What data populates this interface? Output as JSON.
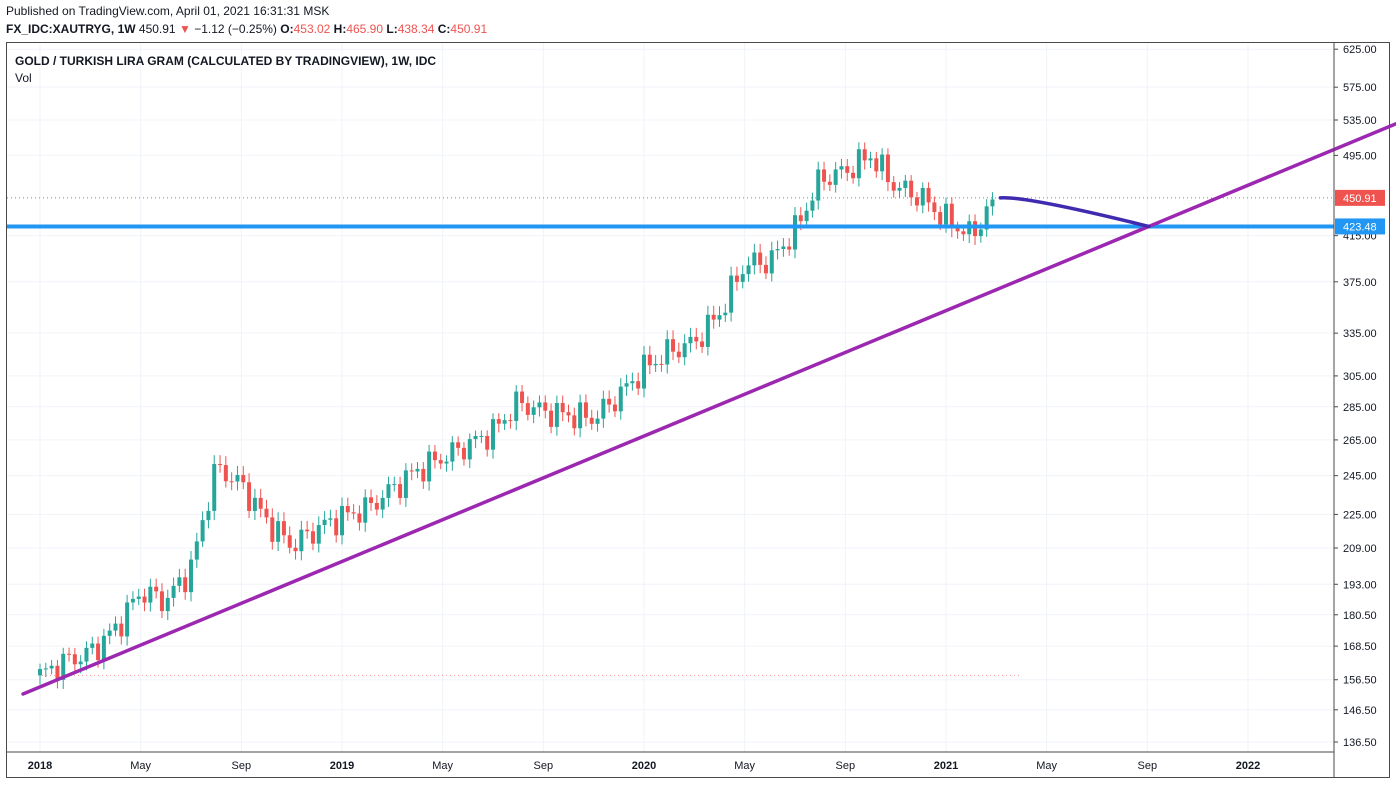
{
  "header": {
    "published": "Published on TradingView.com, April 01, 2021 16:31:31 MSK",
    "symbol": "FX_IDC:XAUTRYG, 1W",
    "last": "450.91",
    "change_arrow": "▼",
    "change": "−1.12 (−0.25%)",
    "o_label": "O:",
    "o_value": "453.02",
    "h_label": "H:",
    "h_value": "465.90",
    "l_label": "L:",
    "l_value": "438.34",
    "c_label": "C:",
    "c_value": "450.91"
  },
  "chart_data": {
    "type": "candlestick",
    "title": "GOLD / TURKISH LIRA GRAM (CALCULATED BY TRADINGVIEW), 1W, IDC",
    "indicator": "Vol",
    "price_scale": "log",
    "y_ticks": [
      "625.00",
      "575.00",
      "535.00",
      "495.00",
      "415.00",
      "375.00",
      "335.00",
      "305.00",
      "285.00",
      "265.00",
      "245.00",
      "225.00",
      "209.00",
      "193.00",
      "180.50",
      "168.50",
      "156.50",
      "146.50",
      "136.50"
    ],
    "x_ticks": [
      {
        "label": "2018",
        "year": true
      },
      {
        "label": "May",
        "year": false
      },
      {
        "label": "Sep",
        "year": false
      },
      {
        "label": "2019",
        "year": true
      },
      {
        "label": "May",
        "year": false
      },
      {
        "label": "Sep",
        "year": false
      },
      {
        "label": "2020",
        "year": true
      },
      {
        "label": "May",
        "year": false
      },
      {
        "label": "Sep",
        "year": false
      },
      {
        "label": "2021",
        "year": true
      },
      {
        "label": "May",
        "year": false
      },
      {
        "label": "Sep",
        "year": false
      },
      {
        "label": "2022",
        "year": true
      }
    ],
    "last_price_label": "450.91",
    "level_label": "423.48",
    "level_price": 423.48,
    "colors": {
      "up": "#26a69a",
      "down": "#ef5350",
      "trendline": "#9c27b0",
      "level": "#2196f3",
      "projection": "#3f2bb0"
    },
    "weekly_close_path": [
      [
        "2018-01",
        158
      ],
      [
        "2018-02",
        163
      ],
      [
        "2018-03",
        166
      ],
      [
        "2018-04",
        175
      ],
      [
        "2018-05",
        190
      ],
      [
        "2018-06",
        186
      ],
      [
        "2018-07",
        200
      ],
      [
        "2018-08",
        250
      ],
      [
        "2018-09",
        240
      ],
      [
        "2018-10",
        222
      ],
      [
        "2018-11",
        210
      ],
      [
        "2018-12",
        218
      ],
      [
        "2019-01",
        224
      ],
      [
        "2019-02",
        228
      ],
      [
        "2019-03",
        238
      ],
      [
        "2019-04",
        248
      ],
      [
        "2019-05",
        255
      ],
      [
        "2019-06",
        262
      ],
      [
        "2019-07",
        270
      ],
      [
        "2019-08",
        288
      ],
      [
        "2019-09",
        282
      ],
      [
        "2019-10",
        280
      ],
      [
        "2019-11",
        278
      ],
      [
        "2019-12",
        292
      ],
      [
        "2020-01",
        310
      ],
      [
        "2020-02",
        322
      ],
      [
        "2020-03",
        328
      ],
      [
        "2020-04",
        350
      ],
      [
        "2020-05",
        390
      ],
      [
        "2020-06",
        392
      ],
      [
        "2020-07",
        420
      ],
      [
        "2020-08",
        470
      ],
      [
        "2020-09",
        478
      ],
      [
        "2020-10",
        495
      ],
      [
        "2020-11",
        462
      ],
      [
        "2020-12",
        452
      ],
      [
        "2021-01",
        430
      ],
      [
        "2021-02",
        415
      ],
      [
        "2021-03",
        450
      ]
    ]
  }
}
